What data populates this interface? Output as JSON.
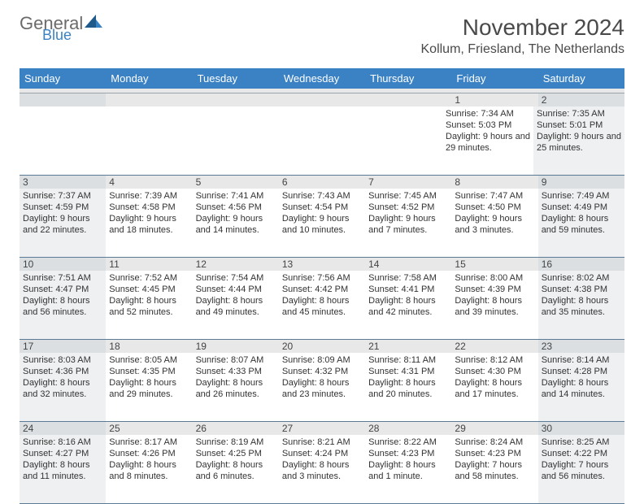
{
  "logo": {
    "general": "General",
    "blue": "Blue"
  },
  "title": "November 2024",
  "location": "Kollum, Friesland, The Netherlands",
  "colors": {
    "header_bg": "#3b82c4",
    "header_text": "#ffffff",
    "shaded_bg": "#eef0f2",
    "border": "#5a7a96"
  },
  "day_headers": [
    "Sunday",
    "Monday",
    "Tuesday",
    "Wednesday",
    "Thursday",
    "Friday",
    "Saturday"
  ],
  "weeks": [
    [
      {
        "n": "",
        "sunrise": "",
        "sunset": "",
        "daylight": ""
      },
      {
        "n": "",
        "sunrise": "",
        "sunset": "",
        "daylight": ""
      },
      {
        "n": "",
        "sunrise": "",
        "sunset": "",
        "daylight": ""
      },
      {
        "n": "",
        "sunrise": "",
        "sunset": "",
        "daylight": ""
      },
      {
        "n": "",
        "sunrise": "",
        "sunset": "",
        "daylight": ""
      },
      {
        "n": "1",
        "sunrise": "Sunrise: 7:34 AM",
        "sunset": "Sunset: 5:03 PM",
        "daylight": "Daylight: 9 hours and 29 minutes."
      },
      {
        "n": "2",
        "sunrise": "Sunrise: 7:35 AM",
        "sunset": "Sunset: 5:01 PM",
        "daylight": "Daylight: 9 hours and 25 minutes."
      }
    ],
    [
      {
        "n": "3",
        "sunrise": "Sunrise: 7:37 AM",
        "sunset": "Sunset: 4:59 PM",
        "daylight": "Daylight: 9 hours and 22 minutes."
      },
      {
        "n": "4",
        "sunrise": "Sunrise: 7:39 AM",
        "sunset": "Sunset: 4:58 PM",
        "daylight": "Daylight: 9 hours and 18 minutes."
      },
      {
        "n": "5",
        "sunrise": "Sunrise: 7:41 AM",
        "sunset": "Sunset: 4:56 PM",
        "daylight": "Daylight: 9 hours and 14 minutes."
      },
      {
        "n": "6",
        "sunrise": "Sunrise: 7:43 AM",
        "sunset": "Sunset: 4:54 PM",
        "daylight": "Daylight: 9 hours and 10 minutes."
      },
      {
        "n": "7",
        "sunrise": "Sunrise: 7:45 AM",
        "sunset": "Sunset: 4:52 PM",
        "daylight": "Daylight: 9 hours and 7 minutes."
      },
      {
        "n": "8",
        "sunrise": "Sunrise: 7:47 AM",
        "sunset": "Sunset: 4:50 PM",
        "daylight": "Daylight: 9 hours and 3 minutes."
      },
      {
        "n": "9",
        "sunrise": "Sunrise: 7:49 AM",
        "sunset": "Sunset: 4:49 PM",
        "daylight": "Daylight: 8 hours and 59 minutes."
      }
    ],
    [
      {
        "n": "10",
        "sunrise": "Sunrise: 7:51 AM",
        "sunset": "Sunset: 4:47 PM",
        "daylight": "Daylight: 8 hours and 56 minutes."
      },
      {
        "n": "11",
        "sunrise": "Sunrise: 7:52 AM",
        "sunset": "Sunset: 4:45 PM",
        "daylight": "Daylight: 8 hours and 52 minutes."
      },
      {
        "n": "12",
        "sunrise": "Sunrise: 7:54 AM",
        "sunset": "Sunset: 4:44 PM",
        "daylight": "Daylight: 8 hours and 49 minutes."
      },
      {
        "n": "13",
        "sunrise": "Sunrise: 7:56 AM",
        "sunset": "Sunset: 4:42 PM",
        "daylight": "Daylight: 8 hours and 45 minutes."
      },
      {
        "n": "14",
        "sunrise": "Sunrise: 7:58 AM",
        "sunset": "Sunset: 4:41 PM",
        "daylight": "Daylight: 8 hours and 42 minutes."
      },
      {
        "n": "15",
        "sunrise": "Sunrise: 8:00 AM",
        "sunset": "Sunset: 4:39 PM",
        "daylight": "Daylight: 8 hours and 39 minutes."
      },
      {
        "n": "16",
        "sunrise": "Sunrise: 8:02 AM",
        "sunset": "Sunset: 4:38 PM",
        "daylight": "Daylight: 8 hours and 35 minutes."
      }
    ],
    [
      {
        "n": "17",
        "sunrise": "Sunrise: 8:03 AM",
        "sunset": "Sunset: 4:36 PM",
        "daylight": "Daylight: 8 hours and 32 minutes."
      },
      {
        "n": "18",
        "sunrise": "Sunrise: 8:05 AM",
        "sunset": "Sunset: 4:35 PM",
        "daylight": "Daylight: 8 hours and 29 minutes."
      },
      {
        "n": "19",
        "sunrise": "Sunrise: 8:07 AM",
        "sunset": "Sunset: 4:33 PM",
        "daylight": "Daylight: 8 hours and 26 minutes."
      },
      {
        "n": "20",
        "sunrise": "Sunrise: 8:09 AM",
        "sunset": "Sunset: 4:32 PM",
        "daylight": "Daylight: 8 hours and 23 minutes."
      },
      {
        "n": "21",
        "sunrise": "Sunrise: 8:11 AM",
        "sunset": "Sunset: 4:31 PM",
        "daylight": "Daylight: 8 hours and 20 minutes."
      },
      {
        "n": "22",
        "sunrise": "Sunrise: 8:12 AM",
        "sunset": "Sunset: 4:30 PM",
        "daylight": "Daylight: 8 hours and 17 minutes."
      },
      {
        "n": "23",
        "sunrise": "Sunrise: 8:14 AM",
        "sunset": "Sunset: 4:28 PM",
        "daylight": "Daylight: 8 hours and 14 minutes."
      }
    ],
    [
      {
        "n": "24",
        "sunrise": "Sunrise: 8:16 AM",
        "sunset": "Sunset: 4:27 PM",
        "daylight": "Daylight: 8 hours and 11 minutes."
      },
      {
        "n": "25",
        "sunrise": "Sunrise: 8:17 AM",
        "sunset": "Sunset: 4:26 PM",
        "daylight": "Daylight: 8 hours and 8 minutes."
      },
      {
        "n": "26",
        "sunrise": "Sunrise: 8:19 AM",
        "sunset": "Sunset: 4:25 PM",
        "daylight": "Daylight: 8 hours and 6 minutes."
      },
      {
        "n": "27",
        "sunrise": "Sunrise: 8:21 AM",
        "sunset": "Sunset: 4:24 PM",
        "daylight": "Daylight: 8 hours and 3 minutes."
      },
      {
        "n": "28",
        "sunrise": "Sunrise: 8:22 AM",
        "sunset": "Sunset: 4:23 PM",
        "daylight": "Daylight: 8 hours and 1 minute."
      },
      {
        "n": "29",
        "sunrise": "Sunrise: 8:24 AM",
        "sunset": "Sunset: 4:23 PM",
        "daylight": "Daylight: 7 hours and 58 minutes."
      },
      {
        "n": "30",
        "sunrise": "Sunrise: 8:25 AM",
        "sunset": "Sunset: 4:22 PM",
        "daylight": "Daylight: 7 hours and 56 minutes."
      }
    ]
  ]
}
